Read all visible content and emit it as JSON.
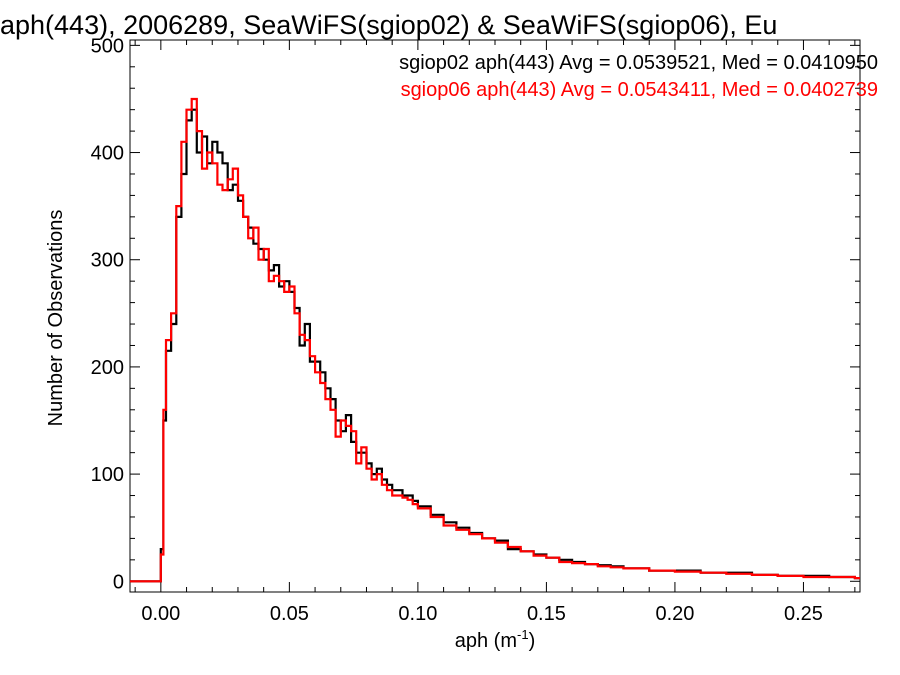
{
  "chart_data": {
    "type": "histogram",
    "title": "aph(443), 2006289, SeaWiFS(sgiop02) & SeaWiFS(sgiop06), Eu",
    "xlabel": "aph (m",
    "xlabel_sup": "-1",
    "xlabel_close": ")",
    "ylabel": "Number of Observations",
    "xlim": [
      -0.012,
      0.272
    ],
    "ylim": [
      -10,
      505
    ],
    "x_ticks": [
      {
        "value": 0.0,
        "label": "0.00"
      },
      {
        "value": 0.05,
        "label": "0.05"
      },
      {
        "value": 0.1,
        "label": "0.10"
      },
      {
        "value": 0.15,
        "label": "0.15"
      },
      {
        "value": 0.2,
        "label": "0.20"
      },
      {
        "value": 0.25,
        "label": "0.25"
      }
    ],
    "y_ticks": [
      {
        "value": 0,
        "label": "0"
      },
      {
        "value": 100,
        "label": "100"
      },
      {
        "value": 200,
        "label": "200"
      },
      {
        "value": 300,
        "label": "300"
      },
      {
        "value": 400,
        "label": "400"
      },
      {
        "value": 500,
        "label": "500"
      }
    ],
    "annotations": [
      {
        "text": "sgiop02 aph(443) Avg = 0.0539521, Med = 0.0410950",
        "color": "#000000"
      },
      {
        "text": "sgiop06 aph(443) Avg = 0.0543411, Med = 0.0402739",
        "color": "#ff0000"
      }
    ],
    "series": [
      {
        "name": "sgiop02",
        "color": "#000000",
        "x": [
          -0.012,
          0.0,
          0.001,
          0.002,
          0.004,
          0.006,
          0.008,
          0.01,
          0.012,
          0.014,
          0.016,
          0.018,
          0.02,
          0.022,
          0.024,
          0.026,
          0.028,
          0.03,
          0.032,
          0.034,
          0.036,
          0.038,
          0.04,
          0.042,
          0.044,
          0.046,
          0.048,
          0.05,
          0.052,
          0.054,
          0.056,
          0.058,
          0.06,
          0.062,
          0.064,
          0.066,
          0.068,
          0.07,
          0.072,
          0.074,
          0.076,
          0.078,
          0.08,
          0.082,
          0.084,
          0.086,
          0.088,
          0.09,
          0.092,
          0.094,
          0.096,
          0.098,
          0.1,
          0.105,
          0.11,
          0.115,
          0.12,
          0.125,
          0.13,
          0.135,
          0.14,
          0.145,
          0.15,
          0.155,
          0.16,
          0.165,
          0.17,
          0.175,
          0.18,
          0.19,
          0.2,
          0.21,
          0.22,
          0.23,
          0.24,
          0.25,
          0.26,
          0.27
        ],
        "y": [
          0,
          30,
          150,
          215,
          240,
          340,
          380,
          430,
          440,
          400,
          415,
          390,
          410,
          400,
          390,
          365,
          370,
          355,
          340,
          330,
          315,
          310,
          300,
          290,
          295,
          275,
          280,
          270,
          255,
          220,
          240,
          205,
          205,
          195,
          180,
          170,
          150,
          140,
          155,
          130,
          120,
          120,
          110,
          100,
          105,
          95,
          90,
          85,
          85,
          80,
          80,
          75,
          70,
          62,
          55,
          50,
          45,
          40,
          38,
          30,
          28,
          25,
          22,
          20,
          18,
          16,
          15,
          14,
          12,
          10,
          10,
          8,
          8,
          6,
          5,
          5,
          4,
          3
        ]
      },
      {
        "name": "sgiop06",
        "color": "#ff0000",
        "x": [
          -0.012,
          0.0,
          0.001,
          0.002,
          0.004,
          0.006,
          0.008,
          0.01,
          0.012,
          0.014,
          0.016,
          0.018,
          0.02,
          0.022,
          0.024,
          0.026,
          0.028,
          0.03,
          0.032,
          0.034,
          0.036,
          0.038,
          0.04,
          0.042,
          0.044,
          0.046,
          0.048,
          0.05,
          0.052,
          0.054,
          0.056,
          0.058,
          0.06,
          0.062,
          0.064,
          0.066,
          0.068,
          0.07,
          0.072,
          0.074,
          0.076,
          0.078,
          0.08,
          0.082,
          0.084,
          0.086,
          0.088,
          0.09,
          0.092,
          0.094,
          0.096,
          0.098,
          0.1,
          0.105,
          0.11,
          0.115,
          0.12,
          0.125,
          0.13,
          0.135,
          0.14,
          0.145,
          0.15,
          0.155,
          0.16,
          0.165,
          0.17,
          0.175,
          0.18,
          0.19,
          0.2,
          0.21,
          0.22,
          0.23,
          0.24,
          0.25,
          0.26,
          0.27
        ],
        "y": [
          0,
          25,
          160,
          225,
          250,
          350,
          410,
          440,
          450,
          420,
          385,
          400,
          390,
          370,
          365,
          375,
          385,
          360,
          340,
          320,
          330,
          300,
          310,
          280,
          285,
          280,
          270,
          275,
          250,
          230,
          225,
          210,
          195,
          185,
          170,
          160,
          135,
          150,
          145,
          140,
          110,
          125,
          105,
          95,
          100,
          90,
          85,
          80,
          80,
          78,
          76,
          72,
          68,
          60,
          52,
          48,
          44,
          40,
          36,
          32,
          28,
          24,
          22,
          18,
          17,
          16,
          14,
          13,
          12,
          10,
          9,
          8,
          7,
          6,
          5,
          4,
          4,
          3
        ]
      }
    ],
    "grid": false,
    "legend": "top-right"
  }
}
